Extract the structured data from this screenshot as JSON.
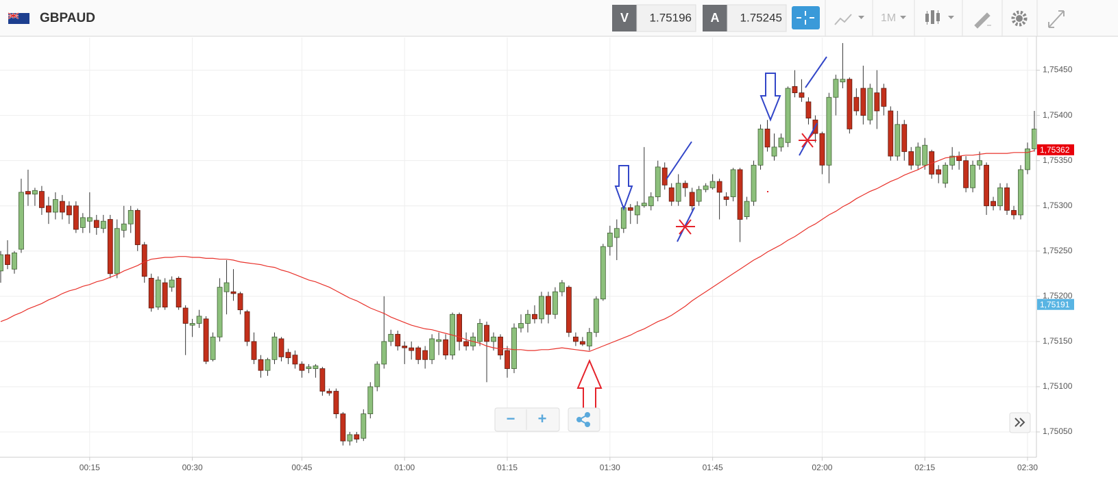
{
  "toolbar": {
    "symbol": "GBPAUD",
    "bid_label": "V",
    "bid": "1.75196",
    "ask_label": "A",
    "ask": "1.75245",
    "timeframe": "1M",
    "zoom_out": "−",
    "zoom_in": "+"
  },
  "chart_data": {
    "type": "candlestick",
    "up_color": "#8dc07c",
    "down_color": "#c3301b",
    "grid": true,
    "categories": [
      null,
      null,
      null,
      null,
      null,
      null,
      null,
      null,
      null,
      null,
      null,
      null,
      null,
      "00:15",
      null,
      null,
      null,
      null,
      null,
      null,
      null,
      null,
      null,
      null,
      null,
      null,
      null,
      null,
      "00:30",
      null,
      null,
      null,
      null,
      null,
      null,
      null,
      null,
      null,
      null,
      null,
      null,
      null,
      null,
      null,
      "00:45",
      null,
      null,
      null,
      null,
      null,
      null,
      null,
      null,
      null,
      null,
      null,
      null,
      null,
      null,
      "01:00",
      null,
      null,
      null,
      null,
      null,
      null,
      null,
      null,
      null,
      null,
      null,
      null,
      null,
      null,
      "01:15",
      null,
      null,
      null,
      null,
      null,
      null,
      null,
      null,
      null,
      null,
      null,
      null,
      null,
      null,
      "01:30",
      null,
      null,
      null,
      null,
      null,
      null,
      null,
      null,
      null,
      null,
      null,
      null,
      null,
      null,
      "01:45",
      null,
      null,
      null,
      null,
      null,
      null,
      null,
      null,
      null,
      null,
      null,
      null,
      null,
      null,
      null,
      "02:00",
      null,
      null,
      null,
      null,
      null,
      null,
      null,
      null,
      null,
      null,
      null,
      null,
      null,
      null,
      "02:15",
      null,
      null,
      null,
      null,
      null,
      null,
      null,
      null,
      null,
      null,
      null,
      null,
      null,
      null,
      "02:30",
      null
    ],
    "open": [
      1.75228,
      1.75246,
      1.7523,
      1.75252,
      1.75316,
      1.75313,
      1.75316,
      1.753,
      1.75293,
      1.75305,
      1.753,
      1.753,
      1.75276,
      1.75283,
      1.75284,
      1.75275,
      1.75285,
      1.75225,
      1.75273,
      1.7528,
      1.75295,
      1.75257,
      1.7522,
      1.75188,
      1.75215,
      1.7521,
      1.7522,
      1.75187,
      1.75168,
      1.7517,
      1.75175,
      1.7513,
      1.75155,
      1.75205,
      1.75205,
      1.75203,
      1.75183,
      1.7515,
      1.7513,
      1.75118,
      1.7513,
      1.75153,
      1.75138,
      1.75135,
      1.75125,
      1.7512,
      1.7512,
      1.7512,
      1.75095,
      1.75095,
      1.7507,
      1.7504,
      1.75047,
      1.75043,
      1.7507,
      1.751,
      1.75125,
      1.7515,
      1.75158,
      1.75145,
      1.75143,
      1.75143,
      1.7514,
      1.7513,
      1.7515,
      1.75152,
      1.75135,
      1.7518,
      1.7515,
      1.75145,
      1.7515,
      1.75168,
      1.7515,
      1.75155,
      1.7514,
      1.7512,
      1.75165,
      1.7517,
      1.7518,
      1.75175,
      1.752,
      1.7518,
      1.75205,
      1.7521,
      1.75155,
      1.7515,
      1.75145,
      1.7516,
      1.75197,
      1.75255,
      1.75265,
      1.75275,
      1.75298,
      1.7529,
      1.753,
      1.753,
      1.7531,
      1.75342,
      1.7532,
      1.75305,
      1.75325,
      1.75315,
      1.75305,
      1.75318,
      1.7532,
      1.75327,
      1.7531,
      1.7531,
      1.7534,
      1.75288,
      1.75305,
      1.75345,
      1.75385,
      1.75355,
      1.75365,
      1.7537,
      1.75432,
      1.75425,
      1.75415,
      1.75395,
      1.7538,
      1.75345,
      1.7542,
      1.75437,
      1.7544,
      1.7542,
      1.7543,
      1.75395,
      1.75425,
      1.7543,
      1.75405,
      1.75355,
      1.7539,
      1.7536,
      1.75345,
      1.75345,
      1.7536,
      1.7534,
      1.75325,
      1.75345,
      1.75355,
      1.7535,
      1.7532,
      1.75345,
      1.75345,
      1.75305,
      1.753,
      1.7532,
      1.75295,
      1.7529,
      1.7534,
      1.75363
    ],
    "high": [
      1.7525,
      1.75262,
      1.7525,
      1.7533,
      1.7534,
      1.7532,
      1.75322,
      1.7531,
      1.75315,
      1.75312,
      1.75305,
      1.75305,
      1.75292,
      1.75315,
      1.7529,
      1.7529,
      1.7529,
      1.75285,
      1.753,
      1.753,
      1.75297,
      1.7526,
      1.75225,
      1.75222,
      1.7522,
      1.75222,
      1.75222,
      1.7519,
      1.75175,
      1.75185,
      1.75178,
      1.7516,
      1.7522,
      1.7524,
      1.7523,
      1.75205,
      1.75185,
      1.7516,
      1.75135,
      1.75132,
      1.7516,
      1.75155,
      1.75142,
      1.7514,
      1.75128,
      1.75125,
      1.75125,
      1.75122,
      1.75098,
      1.75098,
      1.75072,
      1.7505,
      1.7505,
      1.75075,
      1.75105,
      1.75128,
      1.752,
      1.75163,
      1.75162,
      1.7515,
      1.7515,
      1.75145,
      1.75145,
      1.75158,
      1.7516,
      1.75158,
      1.75182,
      1.75182,
      1.7516,
      1.7516,
      1.75175,
      1.75172,
      1.7516,
      1.75158,
      1.75145,
      1.7517,
      1.7518,
      1.75185,
      1.7519,
      1.75205,
      1.75205,
      1.7521,
      1.75218,
      1.75212,
      1.7516,
      1.75155,
      1.75165,
      1.752,
      1.75258,
      1.75278,
      1.75285,
      1.753,
      1.75302,
      1.75305,
      1.75365,
      1.75315,
      1.7535,
      1.75348,
      1.75325,
      1.75335,
      1.75328,
      1.7532,
      1.75322,
      1.75325,
      1.75335,
      1.7533,
      1.75315,
      1.75342,
      1.75342,
      1.7531,
      1.7535,
      1.7539,
      1.75395,
      1.7538,
      1.7538,
      1.75432,
      1.7545,
      1.7544,
      1.7542,
      1.754,
      1.75382,
      1.75425,
      1.75445,
      1.7548,
      1.75442,
      1.7543,
      1.75455,
      1.75435,
      1.7545,
      1.75435,
      1.7541,
      1.75405,
      1.75395,
      1.75365,
      1.7537,
      1.75375,
      1.75362,
      1.75345,
      1.75348,
      1.75365,
      1.7536,
      1.75355,
      1.7535,
      1.7536,
      1.75348,
      1.7531,
      1.75325,
      1.75325,
      1.753,
      1.75345,
      1.7537,
      1.75405
    ],
    "low": [
      1.75215,
      1.7523,
      1.75225,
      1.75248,
      1.753,
      1.753,
      1.7529,
      1.7528,
      1.75285,
      1.75285,
      1.7528,
      1.7527,
      1.7527,
      1.7527,
      1.75268,
      1.7527,
      1.7522,
      1.7522,
      1.75265,
      1.7527,
      1.7525,
      1.75215,
      1.75183,
      1.75185,
      1.75185,
      1.75205,
      1.75185,
      1.75135,
      1.75155,
      1.75165,
      1.75125,
      1.75128,
      1.7515,
      1.7518,
      1.75195,
      1.7518,
      1.75145,
      1.75125,
      1.7511,
      1.75112,
      1.75125,
      1.75128,
      1.75125,
      1.7512,
      1.7511,
      1.75115,
      1.7511,
      1.7509,
      1.7509,
      1.75065,
      1.75035,
      1.75035,
      1.75038,
      1.7504,
      1.75065,
      1.75095,
      1.7512,
      1.75145,
      1.7514,
      1.75125,
      1.7513,
      1.75125,
      1.7512,
      1.75125,
      1.75135,
      1.7513,
      1.7513,
      1.7514,
      1.7514,
      1.7514,
      1.75145,
      1.75105,
      1.7514,
      1.7513,
      1.7511,
      1.75115,
      1.7516,
      1.7516,
      1.7517,
      1.7517,
      1.7517,
      1.75175,
      1.752,
      1.75155,
      1.75145,
      1.75145,
      1.7514,
      1.75155,
      1.75195,
      1.75245,
      1.7524,
      1.7527,
      1.7528,
      1.7528,
      1.75298,
      1.75295,
      1.75305,
      1.75318,
      1.753,
      1.753,
      1.7531,
      1.75295,
      1.753,
      1.75315,
      1.75318,
      1.75285,
      1.753,
      1.75305,
      1.7526,
      1.75285,
      1.753,
      1.7534,
      1.7536,
      1.7535,
      1.7536,
      1.75365,
      1.7542,
      1.75415,
      1.7539,
      1.7537,
      1.75335,
      1.75325,
      1.754,
      1.7543,
      1.7538,
      1.754,
      1.7539,
      1.7539,
      1.75385,
      1.754,
      1.7535,
      1.7535,
      1.7535,
      1.7534,
      1.7534,
      1.7534,
      1.7533,
      1.75325,
      1.7532,
      1.7534,
      1.7534,
      1.75315,
      1.75315,
      1.7534,
      1.7529,
      1.75295,
      1.75295,
      1.7529,
      1.75285,
      1.75285,
      1.75335,
      1.7536
    ],
    "close": [
      1.75246,
      1.75235,
      1.75248,
      1.75315,
      1.75313,
      1.75317,
      1.75298,
      1.75293,
      1.75307,
      1.75293,
      1.7529,
      1.75274,
      1.75287,
      1.75287,
      1.75276,
      1.75283,
      1.75225,
      1.75275,
      1.7528,
      1.75295,
      1.75257,
      1.75222,
      1.75187,
      1.75218,
      1.75188,
      1.75218,
      1.75188,
      1.7517,
      1.7517,
      1.75178,
      1.75128,
      1.75155,
      1.7521,
      1.75215,
      1.75203,
      1.75185,
      1.7515,
      1.7513,
      1.75118,
      1.7513,
      1.75155,
      1.75133,
      1.75132,
      1.75125,
      1.75118,
      1.75122,
      1.75123,
      1.75095,
      1.75093,
      1.7507,
      1.7504,
      1.75047,
      1.75042,
      1.7507,
      1.751,
      1.75125,
      1.7515,
      1.75158,
      1.75145,
      1.75143,
      1.7514,
      1.7513,
      1.7513,
      1.75153,
      1.75152,
      1.75135,
      1.7518,
      1.7515,
      1.75145,
      1.75155,
      1.7517,
      1.7515,
      1.75155,
      1.75135,
      1.7512,
      1.75165,
      1.7517,
      1.7518,
      1.75175,
      1.752,
      1.7518,
      1.75205,
      1.75215,
      1.7516,
      1.7515,
      1.75147,
      1.7516,
      1.75197,
      1.75255,
      1.7527,
      1.75275,
      1.75298,
      1.75295,
      1.753,
      1.75303,
      1.7531,
      1.75343,
      1.75323,
      1.75305,
      1.75325,
      1.7532,
      1.753,
      1.75318,
      1.75322,
      1.75327,
      1.75315,
      1.75307,
      1.7534,
      1.75285,
      1.75305,
      1.75345,
      1.75385,
      1.75365,
      1.75365,
      1.75375,
      1.7543,
      1.75425,
      1.7542,
      1.75397,
      1.7538,
      1.75345,
      1.7542,
      1.7544,
      1.7544,
      1.75385,
      1.75405,
      1.754,
      1.7543,
      1.75405,
      1.7541,
      1.75355,
      1.7539,
      1.7536,
      1.75345,
      1.75365,
      1.75367,
      1.75335,
      1.75335,
      1.75345,
      1.75355,
      1.7535,
      1.7532,
      1.75345,
      1.7535,
      1.753,
      1.753,
      1.7532,
      1.75295,
      1.7529,
      1.7534,
      1.75363,
      1.75385
    ],
    "overlay": {
      "type": "line",
      "color": "#e8312a",
      "values": [
        1.75172,
        1.75175,
        1.75179,
        1.75182,
        1.75186,
        1.75189,
        1.75192,
        1.75196,
        1.75199,
        1.75203,
        1.75206,
        1.75208,
        1.75211,
        1.75213,
        1.75216,
        1.75218,
        1.75221,
        1.75224,
        1.75228,
        1.75231,
        1.75234,
        1.75238,
        1.75241,
        1.75242,
        1.75243,
        1.75243,
        1.75244,
        1.75244,
        1.75243,
        1.75243,
        1.75242,
        1.75242,
        1.75241,
        1.75241,
        1.7524,
        1.75238,
        1.75237,
        1.75236,
        1.75235,
        1.75233,
        1.75232,
        1.75229,
        1.75227,
        1.75224,
        1.75221,
        1.75218,
        1.75216,
        1.75213,
        1.7521,
        1.75206,
        1.75202,
        1.75198,
        1.75195,
        1.75191,
        1.75187,
        1.75184,
        1.75181,
        1.75177,
        1.75174,
        1.75171,
        1.75168,
        1.75166,
        1.75164,
        1.75163,
        1.75161,
        1.75159,
        1.75157,
        1.75155,
        1.75152,
        1.7515,
        1.75148,
        1.75145,
        1.75143,
        1.75142,
        1.75142,
        1.75141,
        1.75141,
        1.7514,
        1.7514,
        1.75141,
        1.75141,
        1.75142,
        1.75143,
        1.75142,
        1.75141,
        1.7514,
        1.75139,
        1.75142,
        1.75145,
        1.75148,
        1.75151,
        1.75154,
        1.75157,
        1.75161,
        1.75164,
        1.75168,
        1.75172,
        1.75175,
        1.75179,
        1.75184,
        1.75189,
        1.75195,
        1.752,
        1.75205,
        1.7521,
        1.75215,
        1.7522,
        1.75225,
        1.7523,
        1.75235,
        1.7524,
        1.75244,
        1.75249,
        1.75253,
        1.75257,
        1.75262,
        1.75266,
        1.75271,
        1.75276,
        1.7528,
        1.75285,
        1.7529,
        1.75294,
        1.75299,
        1.75303,
        1.75308,
        1.75312,
        1.75316,
        1.75319,
        1.75323,
        1.75327,
        1.7533,
        1.75334,
        1.75337,
        1.7534,
        1.75344,
        1.75347,
        1.7535,
        1.75353,
        1.75354,
        1.75355,
        1.75356,
        1.75356,
        1.75357,
        1.75358,
        1.75358,
        1.75358,
        1.75358,
        1.75359,
        1.75359,
        1.75359,
        1.75361
      ]
    },
    "ylim": [
      1.75022,
      1.75486
    ],
    "yticks": [
      {
        "value": 1.7505,
        "label": "1,75050"
      },
      {
        "value": 1.751,
        "label": "1,75100"
      },
      {
        "value": 1.7515,
        "label": "1,75150"
      },
      {
        "value": 1.752,
        "label": "1,75200"
      },
      {
        "value": 1.7525,
        "label": "1,75250"
      },
      {
        "value": 1.753,
        "label": "1,75300"
      },
      {
        "value": 1.7535,
        "label": "1,75350"
      },
      {
        "value": 1.754,
        "label": "1,75400"
      },
      {
        "value": 1.7545,
        "label": "1,75450"
      }
    ],
    "price_tags": [
      {
        "value": 1.75362,
        "label": "1,75362",
        "color": "#e8000b"
      },
      {
        "value": 1.75191,
        "label": "1,75191",
        "color": "#58b4e3"
      }
    ]
  }
}
